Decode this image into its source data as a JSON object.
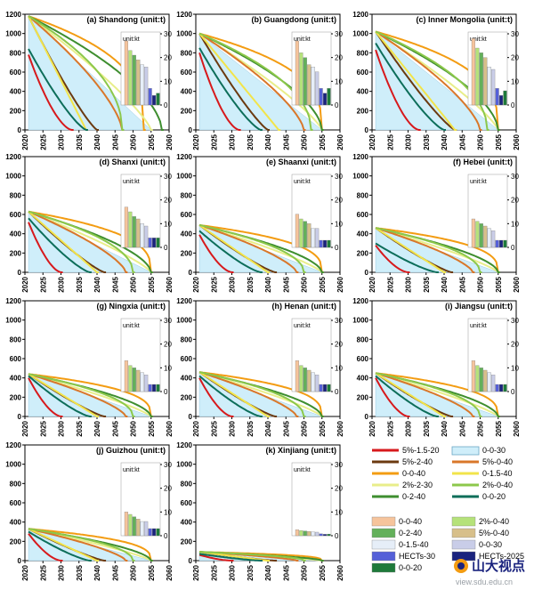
{
  "units": {
    "main": "unit:t",
    "inset": "unit:kt"
  },
  "y_ticks": [
    0,
    200,
    400,
    600,
    800,
    1000,
    1200
  ],
  "x_ticks": [
    2020,
    2025,
    2030,
    2035,
    2040,
    2045,
    2050,
    2055,
    2060
  ],
  "inset_ticks": [
    0,
    10,
    20,
    30
  ],
  "series_styles": [
    {
      "name": "5%-1.5-20",
      "color": "#d7191c"
    },
    {
      "name": "5%-2-40",
      "color": "#6b3a10"
    },
    {
      "name": "0-0-40",
      "color": "#f39c12"
    },
    {
      "name": "2%-2-30",
      "color": "#e8ee8a"
    },
    {
      "name": "0-2-40",
      "color": "#3e8e2f"
    },
    {
      "name": "0-0-30",
      "color": "#cfeefa"
    },
    {
      "name": "5%-0-40",
      "color": "#d9772a"
    },
    {
      "name": "0-1.5-40",
      "color": "#f2e44a"
    },
    {
      "name": "2%-0-40",
      "color": "#8cc84b"
    },
    {
      "name": "0-0-20",
      "color": "#0d6e5a"
    }
  ],
  "legend_lines": [
    {
      "label": "5%-1.5-20",
      "color": "#d7191c",
      "type": "line"
    },
    {
      "label": "0-0-30",
      "color": "#cfeefa",
      "type": "area"
    },
    {
      "label": "5%-2-40",
      "color": "#6b3a10",
      "type": "line"
    },
    {
      "label": "5%-0-40",
      "color": "#d9772a",
      "type": "line"
    },
    {
      "label": "0-0-40",
      "color": "#f39c12",
      "type": "line"
    },
    {
      "label": "0-1.5-40",
      "color": "#f2e44a",
      "type": "line"
    },
    {
      "label": "2%-2-30",
      "color": "#e8ee8a",
      "type": "line"
    },
    {
      "label": "2%-0-40",
      "color": "#8cc84b",
      "type": "line"
    },
    {
      "label": "0-2-40",
      "color": "#3e8e2f",
      "type": "line"
    },
    {
      "label": "0-0-20",
      "color": "#0d6e5a",
      "type": "line"
    }
  ],
  "legend_bars": [
    {
      "label": "0-0-40",
      "color": "#f6c49c"
    },
    {
      "label": "2%-0-40",
      "color": "#b5e27a"
    },
    {
      "label": "0-2-40",
      "color": "#63b05a"
    },
    {
      "label": "5%-0-40",
      "color": "#d7bf8a"
    },
    {
      "label": "0-1.5-40",
      "color": "#e6eef8"
    },
    {
      "label": "0-0-30",
      "color": "#c9cde8"
    },
    {
      "label": "HECTs-30",
      "color": "#5560d8"
    },
    {
      "label": "HECTs-2025",
      "color": "#1a237e"
    },
    {
      "label": "0-0-20",
      "color": "#1e7a3a"
    }
  ],
  "inset_bar_colors": [
    "#f6c49c",
    "#b5e27a",
    "#63b05a",
    "#d7bf8a",
    "#e6eef8",
    "#c9cde8",
    "#5560d8",
    "#1a237e",
    "#1e7a3a"
  ],
  "watermark": {
    "logo": "山大视点",
    "url": "view.sdu.edu.cn"
  },
  "chart_data": [
    {
      "type": "line",
      "panel": "(a)",
      "title": "Shandong (unit:t)",
      "start": 1180,
      "s0": 780,
      "s1": 840,
      "curve_end": [
        2033,
        2040,
        2053,
        2055,
        2058,
        2055,
        2047,
        2037,
        2047,
        2037
      ],
      "inset_values": [
        27,
        23,
        21,
        19,
        17,
        16,
        7,
        4,
        5
      ]
    },
    {
      "type": "line",
      "panel": "(b)",
      "title": "Guangdong (unit:t)",
      "start": 1000,
      "s0": 800,
      "s1": 850,
      "curve_end": [
        2032,
        2040,
        2055,
        2055,
        2055,
        2055,
        2050,
        2043,
        2052,
        2038
      ],
      "inset_values": [
        27,
        22,
        20,
        17,
        16,
        14,
        7,
        5,
        7
      ]
    },
    {
      "type": "line",
      "panel": "(c)",
      "title": "Inner Mongolia (unit:t)",
      "start": 1020,
      "s0": 830,
      "s1": 900,
      "curve_end": [
        2033,
        2043,
        2055,
        2055,
        2055,
        2055,
        2050,
        2043,
        2052,
        2040
      ],
      "inset_values": [
        28,
        24,
        22,
        20,
        16,
        15,
        7,
        4,
        6
      ]
    },
    {
      "type": "line",
      "panel": "(d)",
      "title": "Shanxi (unit:t)",
      "start": 630,
      "s0": 520,
      "s1": 560,
      "curve_end": [
        2030,
        2042,
        2055,
        2055,
        2055,
        2055,
        2048,
        2040,
        2050,
        2038
      ],
      "inset_values": [
        17,
        15,
        13,
        12,
        10,
        9,
        4,
        4,
        4
      ]
    },
    {
      "type": "line",
      "panel": "(e)",
      "title": "Shaanxi (unit:t)",
      "start": 490,
      "s0": 390,
      "s1": 430,
      "curve_end": [
        2030,
        2042,
        2055,
        2055,
        2055,
        2055,
        2048,
        2040,
        2050,
        2038
      ],
      "inset_values": [
        14,
        12,
        11,
        10,
        8,
        8,
        3,
        3,
        3
      ]
    },
    {
      "type": "line",
      "panel": "(f)",
      "title": "Hebei (unit:t)",
      "start": 460,
      "s0": 280,
      "s1": 300,
      "curve_end": [
        2030,
        2042,
        2055,
        2055,
        2055,
        2055,
        2048,
        2040,
        2050,
        2038
      ],
      "inset_values": [
        12,
        11,
        10,
        9,
        8,
        7,
        3,
        3,
        3
      ]
    },
    {
      "type": "line",
      "panel": "(g)",
      "title": "Ningxia (unit:t)",
      "start": 440,
      "s0": 400,
      "s1": 420,
      "curve_end": [
        2030,
        2042,
        2055,
        2055,
        2055,
        2055,
        2048,
        2040,
        2050,
        2038
      ],
      "inset_values": [
        13,
        11,
        10,
        9,
        8,
        7,
        3,
        3,
        3
      ]
    },
    {
      "type": "line",
      "panel": "(h)",
      "title": "Henan (unit:t)",
      "start": 460,
      "s0": 400,
      "s1": 420,
      "curve_end": [
        2030,
        2042,
        2055,
        2055,
        2055,
        2055,
        2048,
        2040,
        2050,
        2038
      ],
      "inset_values": [
        13,
        11,
        10,
        9,
        8,
        7,
        3,
        3,
        3
      ]
    },
    {
      "type": "line",
      "panel": "(i)",
      "title": "Jiangsu (unit:t)",
      "start": 450,
      "s0": 400,
      "s1": 420,
      "curve_end": [
        2030,
        2042,
        2055,
        2055,
        2055,
        2055,
        2048,
        2040,
        2050,
        2038
      ],
      "inset_values": [
        13,
        11,
        10,
        9,
        8,
        7,
        3,
        3,
        3
      ]
    },
    {
      "type": "line",
      "panel": "(j)",
      "title": "Guizhou (unit:t)",
      "start": 330,
      "s0": 280,
      "s1": 300,
      "curve_end": [
        2030,
        2042,
        2055,
        2055,
        2055,
        2055,
        2048,
        2040,
        2050,
        2038
      ],
      "inset_values": [
        10,
        9,
        8,
        7,
        6,
        6,
        3,
        3,
        3
      ]
    },
    {
      "type": "line",
      "panel": "(k)",
      "title": "Xinjiang (unit:t)",
      "start": 90,
      "s0": 60,
      "s1": 70,
      "curve_end": [
        2030,
        2042,
        2055,
        2055,
        2055,
        2055,
        2048,
        2040,
        2050,
        2038
      ],
      "inset_values": [
        2.5,
        2.2,
        2,
        1.8,
        1.6,
        1.5,
        0.8,
        0.6,
        0.7
      ]
    }
  ]
}
